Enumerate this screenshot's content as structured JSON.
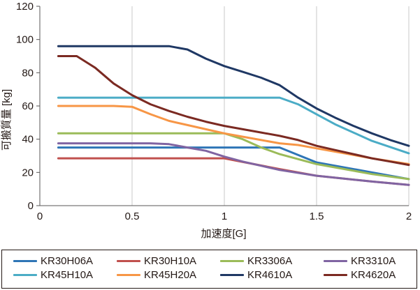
{
  "chart_data": {
    "type": "line",
    "title": "",
    "xlabel": "加速度[G]",
    "ylabel": "可搬質量 [kg]",
    "xlim": [
      0,
      2
    ],
    "ylim": [
      0,
      120
    ],
    "xticks": [
      0,
      0.5,
      1,
      1.5,
      2
    ],
    "xtick_labels": [
      "0",
      "0.5",
      "1",
      "1.5",
      "2"
    ],
    "yticks": [
      0,
      20,
      40,
      60,
      80,
      100,
      120
    ],
    "ytick_labels": [
      "0",
      "20",
      "40",
      "60",
      "80",
      "100",
      "120"
    ],
    "grid": "vertical",
    "legend_position": "bottom",
    "series": [
      {
        "name": "KR30H06A",
        "color": "#2e75b6",
        "x": [
          0.1,
          1.3,
          1.5,
          1.8,
          2.0
        ],
        "y": [
          35,
          35,
          26,
          20,
          16
        ]
      },
      {
        "name": "KR30H10A",
        "color": "#c0504d",
        "x": [
          0.1,
          1.0,
          1.3,
          1.5,
          1.8,
          2.0
        ],
        "y": [
          28.5,
          28.5,
          22,
          18,
          14.5,
          12.5
        ]
      },
      {
        "name": "KR3306A",
        "color": "#9bbb59",
        "x": [
          0.1,
          1.0,
          1.1,
          1.2,
          1.3,
          1.5,
          1.8,
          2.0
        ],
        "y": [
          43.5,
          43.5,
          40,
          35,
          31,
          25,
          19,
          16
        ]
      },
      {
        "name": "KR3310A",
        "color": "#8064a2",
        "x": [
          0.1,
          0.6,
          0.7,
          0.8,
          0.9,
          1.0,
          1.1,
          1.2,
          1.3,
          1.5,
          1.8,
          2.0
        ],
        "y": [
          37.5,
          37.5,
          37,
          35,
          33,
          29.5,
          26.5,
          24,
          21.5,
          18,
          14.5,
          12.5
        ]
      },
      {
        "name": "KR45H10A",
        "color": "#4bacc6",
        "x": [
          0.1,
          1.3,
          1.4,
          1.5,
          1.6,
          1.8,
          2.0
        ],
        "y": [
          65,
          65,
          61,
          55,
          49,
          39,
          31.5
        ]
      },
      {
        "name": "KR45H20A",
        "color": "#f79646",
        "x": [
          0.1,
          0.4,
          0.5,
          0.6,
          0.7,
          0.8,
          0.9,
          1.0,
          1.1,
          1.2,
          1.3,
          1.4,
          1.5,
          1.6,
          1.8,
          2.0
        ],
        "y": [
          60,
          60,
          59.5,
          55,
          51,
          48.5,
          46,
          43.5,
          41.5,
          39.5,
          37.5,
          36.5,
          34.5,
          32.5,
          28.5,
          25
        ]
      },
      {
        "name": "KR4610A",
        "color": "#1f3864",
        "x": [
          0.1,
          0.7,
          0.8,
          0.9,
          1.0,
          1.1,
          1.2,
          1.3,
          1.4,
          1.5,
          1.6,
          1.7,
          1.8,
          1.9,
          2.0
        ],
        "y": [
          96,
          96,
          94,
          88.5,
          84,
          80.5,
          77,
          72.5,
          65,
          58.5,
          53,
          48,
          43.5,
          39.5,
          36
        ]
      },
      {
        "name": "KR4620A",
        "color": "#7b2a22",
        "x": [
          0.1,
          0.2,
          0.3,
          0.4,
          0.5,
          0.6,
          0.7,
          0.8,
          0.9,
          1.0,
          1.1,
          1.2,
          1.3,
          1.4,
          1.5,
          1.6,
          1.7,
          1.8,
          1.9,
          2.0
        ],
        "y": [
          90,
          90,
          83,
          73.5,
          66.5,
          61,
          57,
          53.5,
          50.5,
          48,
          46,
          44,
          42,
          39.5,
          36,
          33.5,
          31,
          28.5,
          26.5,
          24.5
        ]
      }
    ]
  }
}
